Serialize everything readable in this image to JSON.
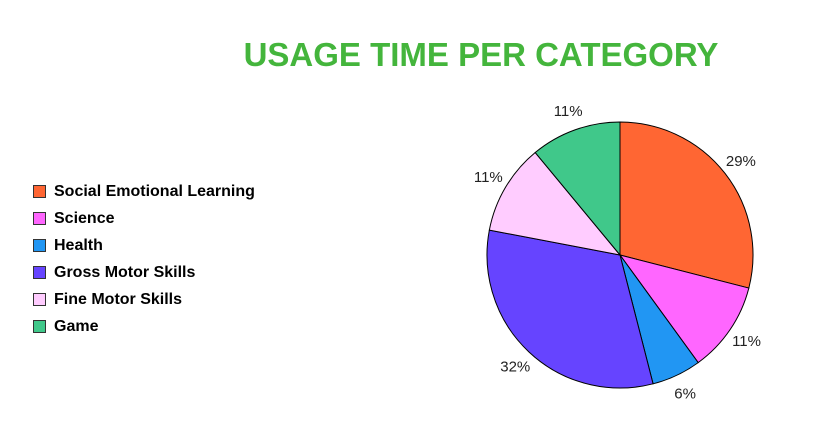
{
  "chart_data": {
    "type": "pie",
    "title": "USAGE TIME PER CATEGORY",
    "legend_position": "left",
    "slices": [
      {
        "name": "Social Emotional Learning",
        "value": 29,
        "label": "29%",
        "color": "#FF6633"
      },
      {
        "name": "Science",
        "value": 11,
        "label": "11%",
        "color": "#FF66FF"
      },
      {
        "name": "Health",
        "value": 6,
        "label": "6%",
        "color": "#2196F3"
      },
      {
        "name": "Gross Motor Skills",
        "value": 32,
        "label": "32%",
        "color": "#6644FF"
      },
      {
        "name": "Fine Motor Skills",
        "value": 11,
        "label": "11%",
        "color": "#FFCCFF"
      },
      {
        "name": "Game",
        "value": 11,
        "label": "11%",
        "color": "#40C88A"
      }
    ]
  }
}
